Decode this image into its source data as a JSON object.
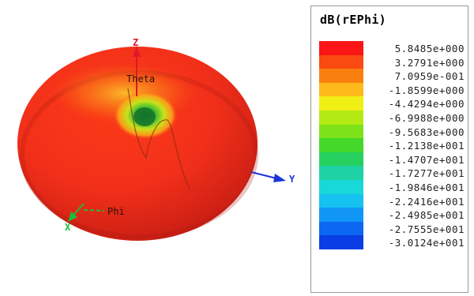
{
  "chart_data": {
    "type": "heatmap",
    "title": "dB(rEPhi)",
    "axes": [
      {
        "name": "Z",
        "color": "#e0182a"
      },
      {
        "name": "Y",
        "color": "#1c36d8"
      },
      {
        "name": "X",
        "color": "#18c03a"
      }
    ],
    "annotations": [
      "Theta",
      "Phi"
    ],
    "legend": {
      "placement": "right",
      "entries": [
        {
          "value": "5.8485e+000",
          "color": "#fa1616"
        },
        {
          "value": "3.2791e+000",
          "color": "#fa4a12"
        },
        {
          "value": "7.0959e-001",
          "color": "#f9800f"
        },
        {
          "value": "-1.8599e+000",
          "color": "#fdba1a"
        },
        {
          "value": "-4.4294e+000",
          "color": "#f0f014"
        },
        {
          "value": "-6.9988e+000",
          "color": "#b4ea14"
        },
        {
          "value": "-9.5683e+000",
          "color": "#7ee21a"
        },
        {
          "value": "-1.2138e+001",
          "color": "#44d82a"
        },
        {
          "value": "-1.4707e+001",
          "color": "#26d060"
        },
        {
          "value": "-1.7277e+001",
          "color": "#1fd2a6"
        },
        {
          "value": "-1.9846e+001",
          "color": "#19d8d8"
        },
        {
          "value": "-2.2416e+001",
          "color": "#15c2f0"
        },
        {
          "value": "-2.4985e+001",
          "color": "#1196f6"
        },
        {
          "value": "-2.7555e+001",
          "color": "#0c68f2"
        },
        {
          "value": "-3.0124e+001",
          "color": "#0a3ee4"
        }
      ]
    }
  }
}
